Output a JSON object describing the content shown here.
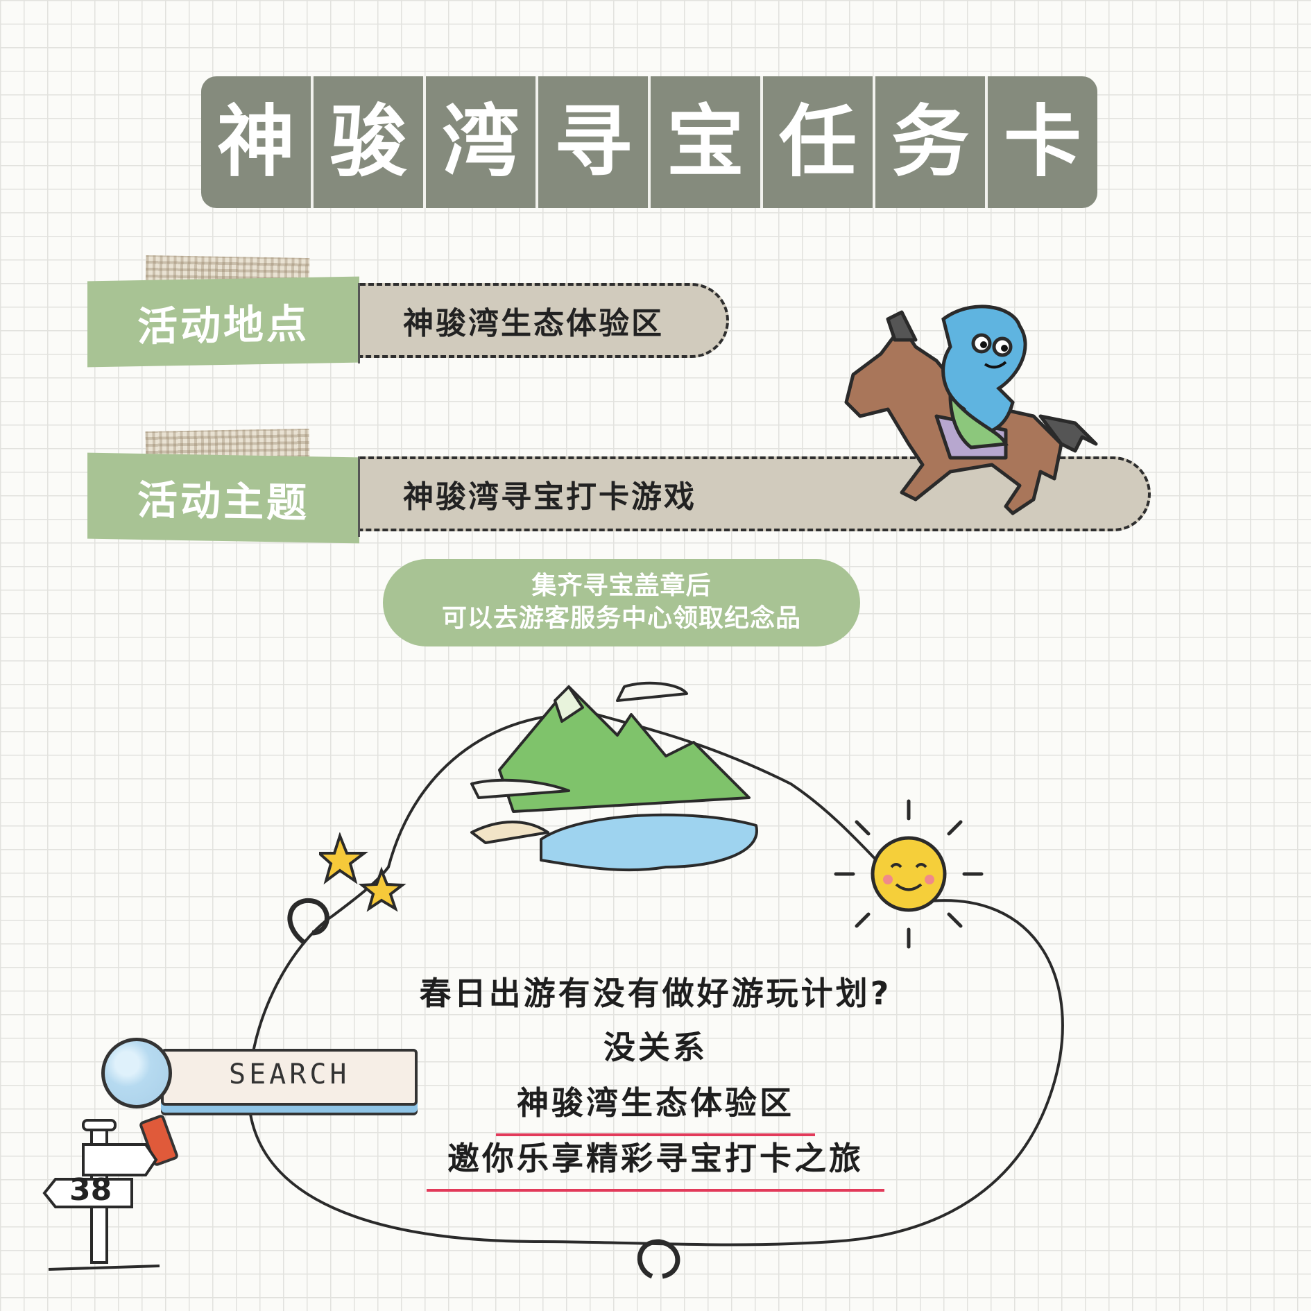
{
  "title": {
    "chars": [
      "神",
      "骏",
      "湾",
      "寻",
      "宝",
      "任",
      "务",
      "卡"
    ]
  },
  "info": {
    "location_label": "活动地点",
    "location_value": "神骏湾生态体验区",
    "theme_label": "活动主题",
    "theme_value": "神骏湾寻宝打卡游戏"
  },
  "notice": {
    "line1": "集齐寻宝盖章后",
    "line2": "可以去游客服务中心领取纪念品"
  },
  "cloud": {
    "line1": "春日出游有没有做好游玩计划?",
    "line2": "没关系",
    "line3": "神骏湾生态体验区",
    "line4": "邀你乐享精彩寻宝打卡之旅"
  },
  "search": {
    "label": "SEARCH"
  },
  "signpost": {
    "number": "38"
  },
  "colors": {
    "banner": "#858b7d",
    "label_green": "#a8c394",
    "value_beige": "#d1cbbd",
    "underline_red": "#e23a5a"
  }
}
